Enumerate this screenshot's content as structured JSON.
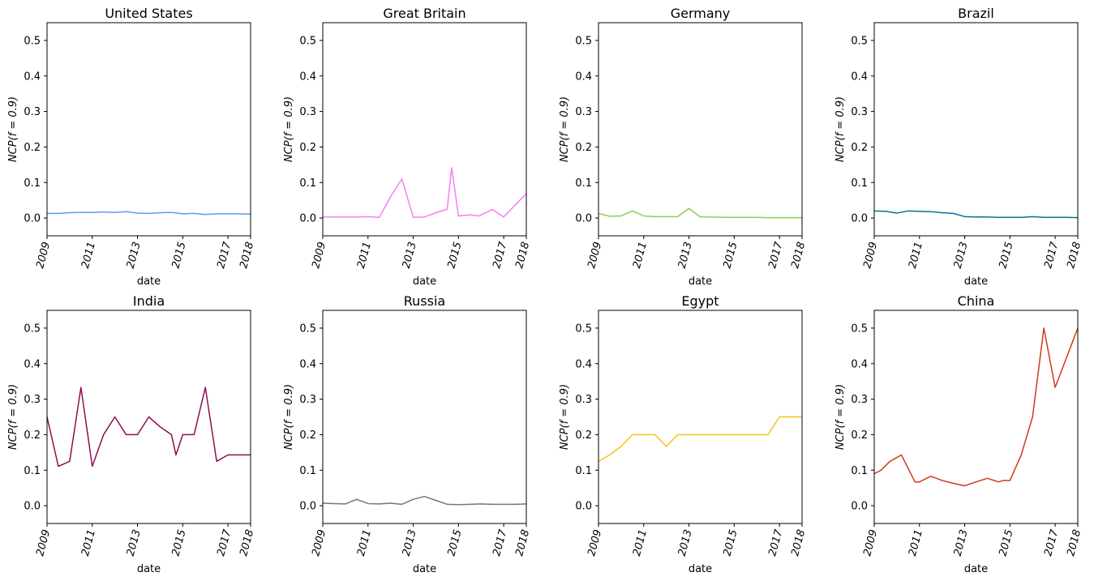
{
  "chart_data": [
    {
      "type": "line",
      "title": "United States",
      "xlabel": "date",
      "ylabel": "NCP(f = 0.9)",
      "color": "#5b9bea",
      "ylim": [
        -0.05,
        0.55
      ],
      "yticks": [
        0.0,
        0.1,
        0.2,
        0.3,
        0.4,
        0.5
      ],
      "ytick_labels": [
        "0.0",
        "0.1",
        "0.2",
        "0.3",
        "0.4",
        "0.5"
      ],
      "xlim": [
        2009,
        2018
      ],
      "xticks": [
        2009,
        2011,
        2013,
        2015,
        2017,
        2018
      ],
      "xtick_labels": [
        "2009",
        "2011",
        "2013",
        "2015",
        "2017",
        "2018"
      ],
      "x": [
        2009,
        2009.5,
        2010,
        2010.5,
        2011,
        2011.5,
        2012,
        2012.5,
        2013,
        2013.5,
        2014,
        2014.5,
        2015,
        2015.5,
        2016,
        2016.5,
        2017,
        2017.5,
        2018
      ],
      "y": [
        0.013,
        0.013,
        0.015,
        0.016,
        0.016,
        0.017,
        0.016,
        0.018,
        0.014,
        0.013,
        0.015,
        0.016,
        0.012,
        0.013,
        0.01,
        0.012,
        0.012,
        0.012,
        0.011
      ]
    },
    {
      "type": "line",
      "title": "Great Britain",
      "xlabel": "date",
      "ylabel": "NCP(f = 0.9)",
      "color": "#f67ef6",
      "ylim": [
        -0.05,
        0.55
      ],
      "yticks": [
        0.0,
        0.1,
        0.2,
        0.3,
        0.4,
        0.5
      ],
      "ytick_labels": [
        "0.0",
        "0.1",
        "0.2",
        "0.3",
        "0.4",
        "0.5"
      ],
      "xlim": [
        2009,
        2018
      ],
      "xticks": [
        2009,
        2011,
        2013,
        2015,
        2017,
        2018
      ],
      "xtick_labels": [
        "2009",
        "2011",
        "2013",
        "2015",
        "2017",
        "2018"
      ],
      "x": [
        2009,
        2009.5,
        2010,
        2010.5,
        2011,
        2011.5,
        2012,
        2012.5,
        2013,
        2013.5,
        2014,
        2014.5,
        2014.7,
        2015,
        2015.5,
        2015.9,
        2016.5,
        2017,
        2018
      ],
      "y": [
        0.003,
        0.003,
        0.003,
        0.003,
        0.004,
        0.002,
        0.06,
        0.11,
        0.002,
        0.003,
        0.015,
        0.025,
        0.142,
        0.006,
        0.009,
        0.006,
        0.024,
        0.003,
        0.069
      ]
    },
    {
      "type": "line",
      "title": "Germany",
      "xlabel": "date",
      "ylabel": "NCP(f = 0.9)",
      "color": "#8fcc5a",
      "ylim": [
        -0.05,
        0.55
      ],
      "yticks": [
        0.0,
        0.1,
        0.2,
        0.3,
        0.4,
        0.5
      ],
      "ytick_labels": [
        "0.0",
        "0.1",
        "0.2",
        "0.3",
        "0.4",
        "0.5"
      ],
      "xlim": [
        2009,
        2018
      ],
      "xticks": [
        2009,
        2011,
        2013,
        2015,
        2017,
        2018
      ],
      "xtick_labels": [
        "2009",
        "2011",
        "2013",
        "2015",
        "2017",
        "2018"
      ],
      "x": [
        2009,
        2009.5,
        2010,
        2010.5,
        2011,
        2011.5,
        2012,
        2012.5,
        2013,
        2013.5,
        2014,
        2014.5,
        2015,
        2015.5,
        2016,
        2016.5,
        2017,
        2017.5,
        2018
      ],
      "y": [
        0.013,
        0.005,
        0.006,
        0.02,
        0.006,
        0.004,
        0.004,
        0.004,
        0.027,
        0.003,
        0.003,
        0.002,
        0.002,
        0.002,
        0.002,
        0.001,
        0.001,
        0.001,
        0.001
      ]
    },
    {
      "type": "line",
      "title": "Brazil",
      "xlabel": "date",
      "ylabel": "NCP(f = 0.9)",
      "color": "#0b6e99",
      "ylim": [
        -0.05,
        0.55
      ],
      "yticks": [
        0.0,
        0.1,
        0.2,
        0.3,
        0.4,
        0.5
      ],
      "ytick_labels": [
        "0.0",
        "0.1",
        "0.2",
        "0.3",
        "0.4",
        "0.5"
      ],
      "xlim": [
        2009,
        2018
      ],
      "xticks": [
        2009,
        2011,
        2013,
        2015,
        2017,
        2018
      ],
      "xtick_labels": [
        "2009",
        "2011",
        "2013",
        "2015",
        "2017",
        "2018"
      ],
      "x": [
        2009,
        2009.5,
        2010,
        2010.5,
        2011,
        2011.5,
        2012,
        2012.5,
        2013,
        2013.5,
        2014,
        2014.5,
        2015,
        2015.5,
        2016,
        2016.5,
        2017,
        2017.5,
        2018
      ],
      "y": [
        0.02,
        0.019,
        0.014,
        0.02,
        0.019,
        0.018,
        0.015,
        0.013,
        0.004,
        0.003,
        0.003,
        0.002,
        0.002,
        0.002,
        0.004,
        0.002,
        0.002,
        0.002,
        0.001
      ]
    },
    {
      "type": "line",
      "title": "India",
      "xlabel": "date",
      "ylabel": "NCP(f = 0.9)",
      "color": "#8b1050",
      "ylim": [
        -0.05,
        0.55
      ],
      "yticks": [
        0.0,
        0.1,
        0.2,
        0.3,
        0.4,
        0.5
      ],
      "ytick_labels": [
        "0.0",
        "0.1",
        "0.2",
        "0.3",
        "0.4",
        "0.5"
      ],
      "xlim": [
        2009,
        2018
      ],
      "xticks": [
        2009,
        2011,
        2013,
        2015,
        2017,
        2018
      ],
      "xtick_labels": [
        "2009",
        "2011",
        "2013",
        "2015",
        "2017",
        "2018"
      ],
      "x": [
        2009,
        2009.5,
        2010,
        2010.5,
        2011,
        2011.5,
        2012,
        2012.5,
        2013,
        2013.5,
        2014,
        2014.5,
        2014.7,
        2015,
        2015.5,
        2016,
        2016.5,
        2017,
        2018
      ],
      "y": [
        0.25,
        0.111,
        0.125,
        0.333,
        0.111,
        0.2,
        0.25,
        0.2,
        0.2,
        0.25,
        0.222,
        0.2,
        0.143,
        0.2,
        0.2,
        0.333,
        0.125,
        0.143,
        0.143
      ]
    },
    {
      "type": "line",
      "title": "Russia",
      "xlabel": "date",
      "ylabel": "NCP(f = 0.9)",
      "color": "#6e7a76",
      "ylim": [
        -0.05,
        0.55
      ],
      "yticks": [
        0.0,
        0.1,
        0.2,
        0.3,
        0.4,
        0.5
      ],
      "ytick_labels": [
        "0.0",
        "0.1",
        "0.2",
        "0.3",
        "0.4",
        "0.5"
      ],
      "xlim": [
        2009,
        2018
      ],
      "xticks": [
        2009,
        2011,
        2013,
        2015,
        2017,
        2018
      ],
      "xtick_labels": [
        "2009",
        "2011",
        "2013",
        "2015",
        "2017",
        "2018"
      ],
      "x": [
        2009,
        2009.5,
        2010,
        2010.5,
        2011,
        2011.5,
        2012,
        2012.5,
        2013,
        2013.5,
        2014,
        2014.5,
        2015,
        2015.5,
        2016,
        2016.5,
        2017,
        2017.5,
        2018
      ],
      "y": [
        0.007,
        0.006,
        0.005,
        0.018,
        0.006,
        0.005,
        0.007,
        0.004,
        0.018,
        0.026,
        0.015,
        0.004,
        0.003,
        0.004,
        0.005,
        0.004,
        0.004,
        0.004,
        0.005
      ]
    },
    {
      "type": "line",
      "title": "Egypt",
      "xlabel": "date",
      "ylabel": "NCP(f = 0.9)",
      "color": "#f5c518",
      "ylim": [
        -0.05,
        0.55
      ],
      "yticks": [
        0.0,
        0.1,
        0.2,
        0.3,
        0.4,
        0.5
      ],
      "ytick_labels": [
        "0.0",
        "0.1",
        "0.2",
        "0.3",
        "0.4",
        "0.5"
      ],
      "xlim": [
        2009,
        2018
      ],
      "xticks": [
        2009,
        2011,
        2013,
        2015,
        2017,
        2018
      ],
      "xtick_labels": [
        "2009",
        "2011",
        "2013",
        "2015",
        "2017",
        "2018"
      ],
      "x": [
        2009,
        2009.5,
        2010,
        2010.5,
        2011,
        2011.5,
        2012,
        2012.5,
        2013,
        2013.5,
        2014,
        2014.5,
        2015,
        2015.5,
        2016,
        2016.5,
        2017,
        2017.5,
        2018
      ],
      "y": [
        0.125,
        0.143,
        0.167,
        0.2,
        0.2,
        0.2,
        0.167,
        0.2,
        0.2,
        0.2,
        0.2,
        0.2,
        0.2,
        0.2,
        0.2,
        0.2,
        0.25,
        0.25,
        0.25
      ]
    },
    {
      "type": "line",
      "title": "China",
      "xlabel": "date",
      "ylabel": "NCP(f = 0.9)",
      "color": "#cc3a1a",
      "ylim": [
        -0.05,
        0.55
      ],
      "yticks": [
        0.0,
        0.1,
        0.2,
        0.3,
        0.4,
        0.5
      ],
      "ytick_labels": [
        "0.0",
        "0.1",
        "0.2",
        "0.3",
        "0.4",
        "0.5"
      ],
      "xlim": [
        2009,
        2018
      ],
      "xticks": [
        2009,
        2011,
        2013,
        2015,
        2017,
        2018
      ],
      "xtick_labels": [
        "2009",
        "2011",
        "2013",
        "2015",
        "2017",
        "2018"
      ],
      "x": [
        2009,
        2009.3,
        2009.7,
        2010.2,
        2010.8,
        2011,
        2011.5,
        2012,
        2012.5,
        2013,
        2013.5,
        2014,
        2014.5,
        2014.7,
        2015,
        2015.5,
        2016,
        2016.5,
        2017,
        2018
      ],
      "y": [
        0.09,
        0.1,
        0.125,
        0.143,
        0.067,
        0.067,
        0.083,
        0.071,
        0.063,
        0.056,
        0.067,
        0.077,
        0.067,
        0.071,
        0.071,
        0.143,
        0.25,
        0.5,
        0.333,
        0.5
      ]
    }
  ]
}
